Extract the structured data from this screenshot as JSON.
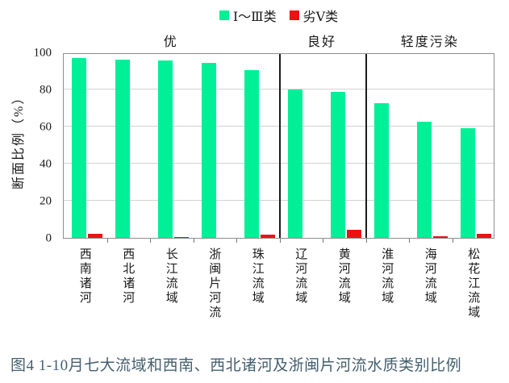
{
  "legend": {
    "items": [
      {
        "label": "Ⅰ～Ⅲ类",
        "color": "#00F098"
      },
      {
        "label": "劣Ⅴ类",
        "color": "#E81414"
      }
    ]
  },
  "chart_data": {
    "type": "bar",
    "categories": [
      "西南诸河",
      "西北诸河",
      "长江流域",
      "浙闽片河流",
      "珠江流域",
      "辽河流域",
      "黄河流域",
      "淮河流域",
      "海河流域",
      "松花江流域"
    ],
    "series": [
      {
        "name": "Ⅰ～Ⅲ类",
        "color": "#00F098",
        "values": [
          97,
          96,
          95.5,
          94.5,
          90.5,
          80,
          78.5,
          72.5,
          62.5,
          59
        ]
      },
      {
        "name": "劣Ⅴ类",
        "color": "#E81414",
        "values": [
          2,
          0,
          0.5,
          0,
          1.7,
          0,
          4.3,
          0,
          1,
          2
        ]
      }
    ],
    "sections": [
      {
        "label": "优",
        "from": 0,
        "to": 5
      },
      {
        "label": "良好",
        "from": 5,
        "to": 7
      },
      {
        "label": "轻度污染",
        "from": 7,
        "to": 10
      }
    ],
    "ylabel": "断面比例（%）",
    "yticks": [
      0,
      20,
      40,
      60,
      80,
      100
    ],
    "ylim": [
      0,
      100
    ],
    "grid": true,
    "legend_position": "top-center"
  },
  "caption": "图4  1-10月七大流域和西南、西北诸河及浙闽片河流水质类别比例"
}
